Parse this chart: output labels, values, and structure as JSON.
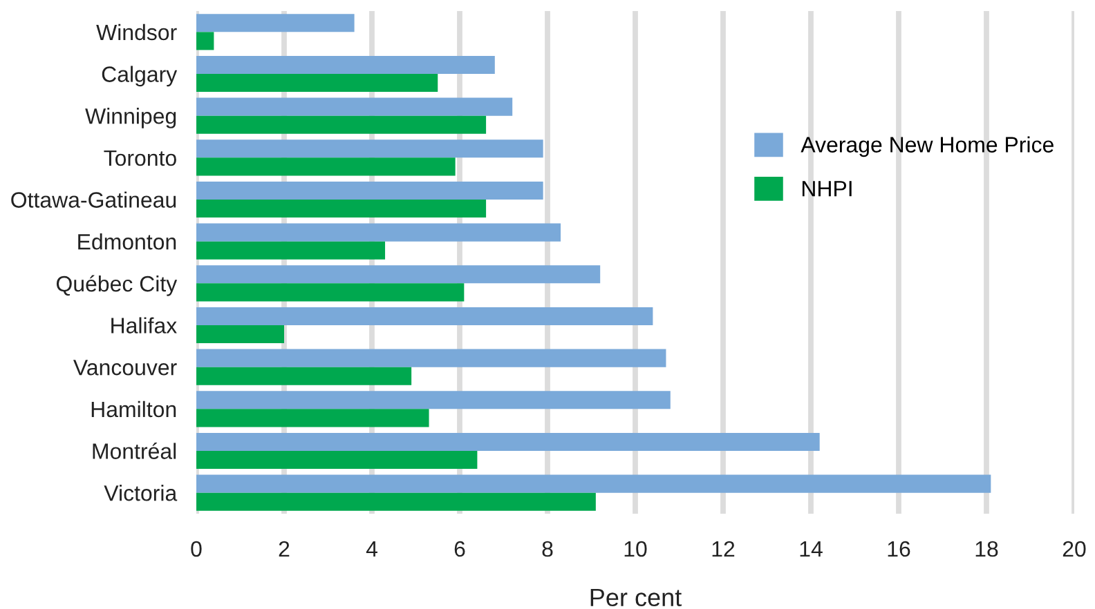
{
  "chart_data": {
    "type": "bar",
    "orientation": "horizontal",
    "xlabel": "Per cent",
    "categories": [
      "Windsor",
      "Calgary",
      "Winnipeg",
      "Toronto",
      "Ottawa-Gatineau",
      "Edmonton",
      "Québec City",
      "Halifax",
      "Vancouver",
      "Hamilton",
      "Montréal",
      "Victoria"
    ],
    "series": [
      {
        "name": "Average New Home Price",
        "color": "#7aa9d9",
        "values": [
          3.6,
          6.8,
          7.2,
          7.9,
          7.9,
          8.3,
          9.2,
          10.4,
          10.7,
          10.8,
          14.2,
          18.1
        ]
      },
      {
        "name": "NHPI",
        "color": "#00a84f",
        "values": [
          0.4,
          5.5,
          6.6,
          5.9,
          6.6,
          4.3,
          6.1,
          2.0,
          4.9,
          5.3,
          6.4,
          9.1
        ]
      }
    ],
    "xlim": [
      0,
      20
    ],
    "xticks": [
      0,
      2,
      4,
      6,
      8,
      10,
      12,
      14,
      16,
      18,
      20
    ],
    "grid": "x",
    "legend": "right"
  }
}
